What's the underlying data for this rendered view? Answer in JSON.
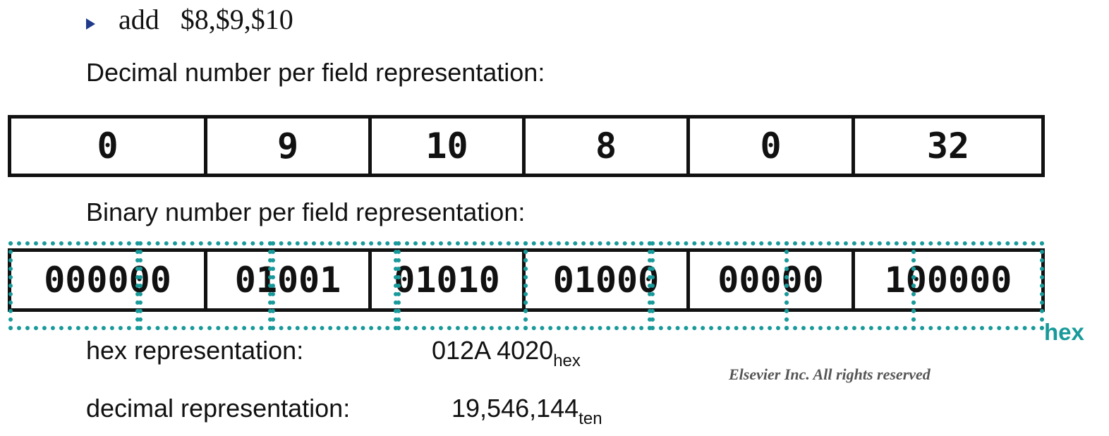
{
  "instruction": {
    "text": "add   $8,$9,$10",
    "bullet_icon": "triangle-right-icon"
  },
  "decimal_section": {
    "label": "Decimal number per field representation:",
    "fields": [
      "0",
      "9",
      "10",
      "8",
      "0",
      "32"
    ]
  },
  "binary_section": {
    "label": "Binary number per field representation:",
    "fields": [
      "000000",
      "01001",
      "01010",
      "01000",
      "00000",
      "100000"
    ]
  },
  "hex_grouping": {
    "label": "hex",
    "color": "#199a9a",
    "group_count": 8
  },
  "hex_representation": {
    "label": "hex representation:",
    "value": "012A 4020",
    "subscript": "hex"
  },
  "decimal_representation": {
    "label": "decimal representation:",
    "value": "19,546,144",
    "subscript": "ten"
  },
  "copyright": "Elsevier Inc. All rights reserved"
}
